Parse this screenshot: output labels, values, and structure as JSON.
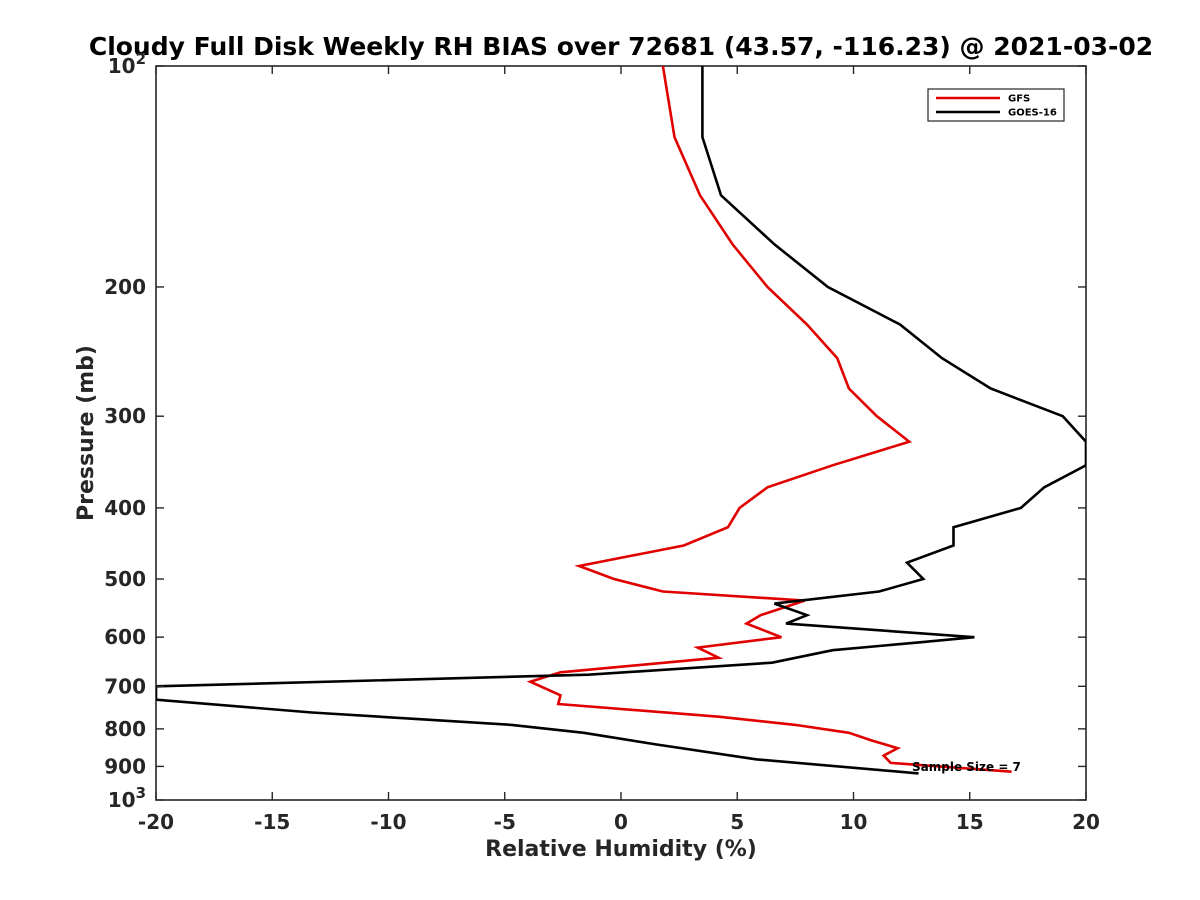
{
  "chart_data": {
    "type": "line",
    "title": "Cloudy Full Disk Weekly RH BIAS over 72681 (43.57, -116.23) @ 2021-03-02",
    "xlabel": "Relative Humidity (%)",
    "ylabel": "Pressure (mb)",
    "xlim": [
      -20,
      20
    ],
    "ylim": [
      100,
      1000
    ],
    "y_scale": "log",
    "y_reversed": true,
    "x_ticks": [
      -20,
      -15,
      -10,
      -5,
      0,
      5,
      10,
      15,
      20
    ],
    "x_tick_labels": [
      "-20",
      "-15",
      "-10",
      "-5",
      "0",
      "5",
      "10",
      "15",
      "20"
    ],
    "y_ticks": [
      100,
      200,
      300,
      400,
      500,
      600,
      700,
      800,
      900,
      1000
    ],
    "y_tick_labels": [
      {
        "base": "10",
        "exp": "2"
      },
      {
        "base": "200",
        "exp": ""
      },
      {
        "base": "300",
        "exp": ""
      },
      {
        "base": "400",
        "exp": ""
      },
      {
        "base": "500",
        "exp": ""
      },
      {
        "base": "600",
        "exp": ""
      },
      {
        "base": "700",
        "exp": ""
      },
      {
        "base": "800",
        "exp": ""
      },
      {
        "base": "900",
        "exp": ""
      },
      {
        "base": "10",
        "exp": "3"
      }
    ],
    "grid": false,
    "legend_position": "top-right",
    "annotation": "Sample Size = 7",
    "series": [
      {
        "name": "GFS",
        "color": "#e00000",
        "points": [
          [
            1.8,
            100
          ],
          [
            2.3,
            125
          ],
          [
            3.4,
            150
          ],
          [
            4.8,
            175
          ],
          [
            6.3,
            200
          ],
          [
            8.0,
            225
          ],
          [
            9.3,
            250
          ],
          [
            9.8,
            275
          ],
          [
            11.0,
            300
          ],
          [
            12.4,
            325
          ],
          [
            9.1,
            350
          ],
          [
            6.3,
            375
          ],
          [
            5.1,
            400
          ],
          [
            4.6,
            425
          ],
          [
            2.7,
            450
          ],
          [
            -1.8,
            480
          ],
          [
            -0.3,
            500
          ],
          [
            1.8,
            520
          ],
          [
            7.9,
            535
          ],
          [
            6.0,
            560
          ],
          [
            5.4,
            575
          ],
          [
            6.9,
            600
          ],
          [
            3.3,
            620
          ],
          [
            4.2,
            640
          ],
          [
            -2.6,
            670
          ],
          [
            -3.9,
            690
          ],
          [
            -2.6,
            720
          ],
          [
            -2.7,
            740
          ],
          [
            4.2,
            770
          ],
          [
            7.5,
            790
          ],
          [
            9.8,
            810
          ],
          [
            10.8,
            830
          ],
          [
            11.9,
            850
          ],
          [
            11.3,
            870
          ],
          [
            11.6,
            890
          ],
          [
            16.8,
            915
          ]
        ]
      },
      {
        "name": "GOES-16",
        "color": "#000000",
        "points": [
          [
            3.5,
            100
          ],
          [
            3.5,
            125
          ],
          [
            4.3,
            150
          ],
          [
            6.6,
            175
          ],
          [
            8.9,
            200
          ],
          [
            12.0,
            225
          ],
          [
            13.8,
            250
          ],
          [
            15.9,
            275
          ],
          [
            19.0,
            300
          ],
          [
            20.0,
            325
          ],
          [
            20.0,
            350
          ],
          [
            18.2,
            375
          ],
          [
            17.2,
            400
          ],
          [
            14.3,
            425
          ],
          [
            14.3,
            450
          ],
          [
            12.3,
            475
          ],
          [
            13.0,
            500
          ],
          [
            11.1,
            520
          ],
          [
            6.6,
            540
          ],
          [
            8.0,
            560
          ],
          [
            7.1,
            575
          ],
          [
            15.2,
            600
          ],
          [
            12.8,
            610
          ],
          [
            9.1,
            625
          ],
          [
            6.5,
            650
          ],
          [
            -1.4,
            675
          ],
          [
            -20.0,
            700
          ],
          [
            -20.0,
            730
          ],
          [
            -13.3,
            760
          ],
          [
            -4.7,
            790
          ],
          [
            -1.6,
            810
          ],
          [
            1.5,
            840
          ],
          [
            5.8,
            880
          ],
          [
            12.8,
            920
          ]
        ]
      }
    ]
  }
}
